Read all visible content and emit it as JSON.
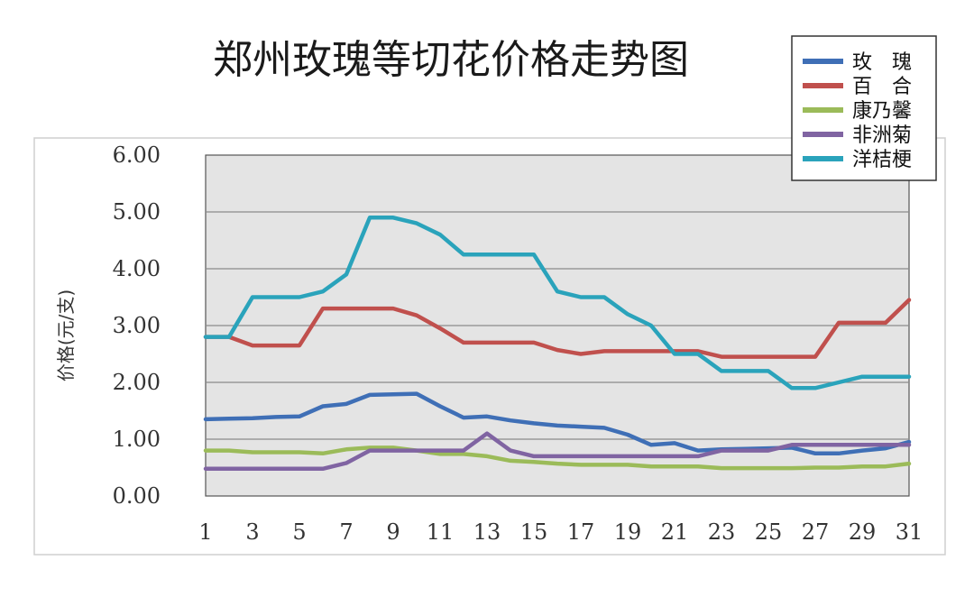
{
  "title": "郑州玫瑰等切花价格走势图",
  "chart_data": {
    "type": "line",
    "title": "郑州玫瑰等切花价格走势图",
    "xlabel": "",
    "ylabel": "价格(元/支)",
    "x": [
      1,
      2,
      3,
      4,
      5,
      6,
      7,
      8,
      9,
      10,
      11,
      12,
      13,
      14,
      15,
      16,
      17,
      18,
      19,
      20,
      21,
      22,
      23,
      24,
      25,
      26,
      27,
      28,
      29,
      30,
      31
    ],
    "x_tick_labels": [
      "1",
      "3",
      "5",
      "7",
      "9",
      "11",
      "13",
      "15",
      "17",
      "19",
      "21",
      "23",
      "25",
      "27",
      "29",
      "31"
    ],
    "y_tick_labels": [
      "0.00",
      "1.00",
      "2.00",
      "3.00",
      "4.00",
      "5.00",
      "6.00"
    ],
    "ylim": [
      0,
      6
    ],
    "grid": true,
    "legend_position": "top-right",
    "series": [
      {
        "name": "玫　瑰",
        "color": "#3f6fb6",
        "values": [
          1.35,
          1.36,
          1.37,
          1.39,
          1.4,
          1.58,
          1.62,
          1.78,
          1.79,
          1.8,
          1.58,
          1.38,
          1.4,
          1.33,
          1.28,
          1.24,
          1.22,
          1.2,
          1.08,
          0.9,
          0.93,
          0.8,
          0.82,
          0.83,
          0.84,
          0.85,
          0.75,
          0.75,
          0.8,
          0.84,
          0.95
        ]
      },
      {
        "name": "百　合",
        "color": "#c0504d",
        "values": [
          2.8,
          2.8,
          2.65,
          2.65,
          2.65,
          3.3,
          3.3,
          3.3,
          3.3,
          3.18,
          2.95,
          2.7,
          2.7,
          2.7,
          2.7,
          2.57,
          2.5,
          2.55,
          2.55,
          2.55,
          2.55,
          2.55,
          2.45,
          2.45,
          2.45,
          2.45,
          2.45,
          3.05,
          3.05,
          3.05,
          3.45
        ]
      },
      {
        "name": "康乃馨",
        "color": "#9bbb59",
        "values": [
          0.8,
          0.8,
          0.77,
          0.77,
          0.77,
          0.75,
          0.82,
          0.85,
          0.85,
          0.8,
          0.74,
          0.74,
          0.7,
          0.62,
          0.6,
          0.57,
          0.55,
          0.55,
          0.55,
          0.52,
          0.52,
          0.52,
          0.49,
          0.49,
          0.49,
          0.49,
          0.5,
          0.5,
          0.52,
          0.52,
          0.57
        ]
      },
      {
        "name": "非洲菊",
        "color": "#8064a2",
        "values": [
          0.48,
          0.48,
          0.48,
          0.48,
          0.48,
          0.48,
          0.58,
          0.8,
          0.8,
          0.8,
          0.8,
          0.8,
          1.1,
          0.8,
          0.7,
          0.7,
          0.7,
          0.7,
          0.7,
          0.7,
          0.7,
          0.7,
          0.8,
          0.8,
          0.8,
          0.9,
          0.9,
          0.9,
          0.9,
          0.9,
          0.9
        ]
      },
      {
        "name": "洋桔梗",
        "color": "#2aa3bb",
        "values": [
          2.8,
          2.8,
          3.5,
          3.5,
          3.5,
          3.6,
          3.9,
          4.9,
          4.9,
          4.8,
          4.6,
          4.25,
          4.25,
          4.25,
          4.25,
          3.6,
          3.5,
          3.5,
          3.2,
          3.0,
          2.5,
          2.5,
          2.2,
          2.2,
          2.2,
          1.9,
          1.9,
          2.0,
          2.1,
          2.1,
          2.1
        ]
      }
    ]
  }
}
